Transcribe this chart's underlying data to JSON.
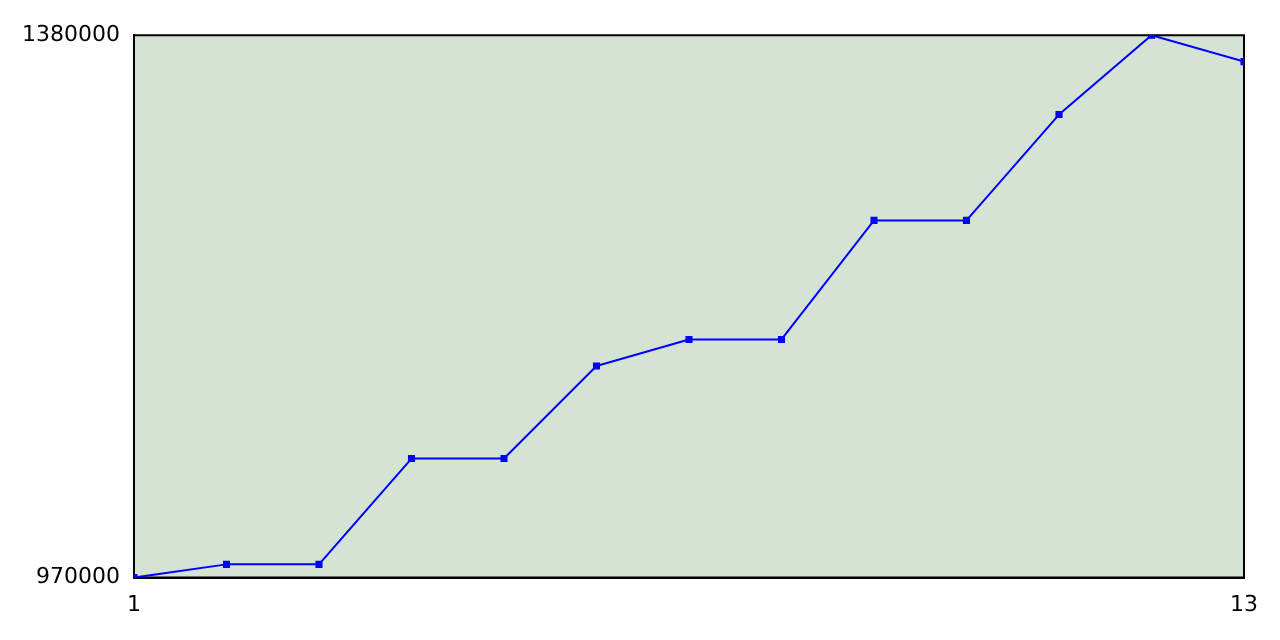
{
  "chart_data": {
    "type": "line",
    "x": [
      1,
      2,
      3,
      4,
      5,
      6,
      7,
      8,
      9,
      10,
      11,
      12,
      13
    ],
    "series": [
      {
        "color": "#0000ff",
        "values": [
          970000,
          980000,
          980000,
          1060000,
          1060000,
          1130000,
          1150000,
          1150000,
          1240000,
          1240000,
          1320000,
          1380000,
          1360000
        ]
      }
    ],
    "xlim": [
      1,
      13
    ],
    "xticks": [
      1,
      13
    ],
    "ylim": [
      970000,
      1380000
    ],
    "yticks": [
      970000,
      1380000
    ],
    "grid": false,
    "legend": false,
    "marker": "square",
    "line_style": "solid"
  }
}
